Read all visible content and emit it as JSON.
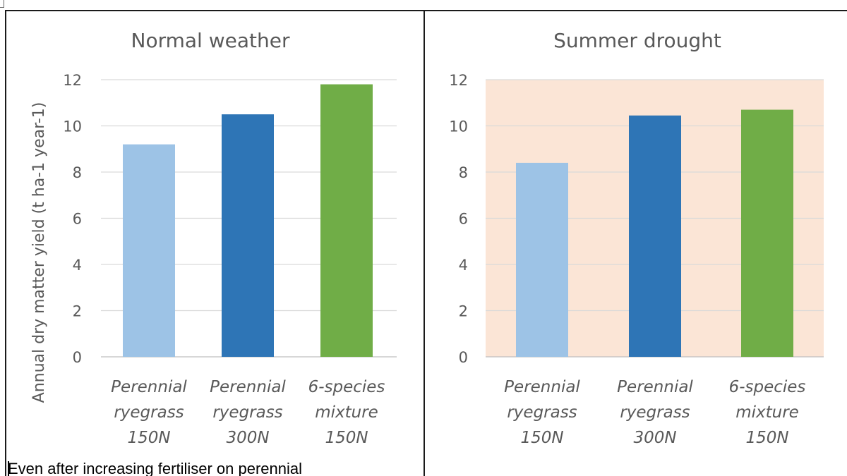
{
  "chart_data": [
    {
      "type": "bar",
      "title": "Normal weather",
      "ylabel": "Annual dry matter yield (t ha-1 year-1)",
      "xlabel": "",
      "categories": [
        [
          "Perennial",
          "ryegrass",
          "150N"
        ],
        [
          "Perennial",
          "ryegrass",
          "300N"
        ],
        [
          "6-species",
          "mixture",
          "150N"
        ]
      ],
      "values": [
        9.2,
        10.5,
        11.8
      ],
      "colors": [
        "#9dc3e6",
        "#2e75b6",
        "#70ad47"
      ],
      "ylim": [
        0,
        12
      ],
      "yticks": [
        "0",
        "2",
        "4",
        "6",
        "8",
        "10",
        "12"
      ],
      "grid": true,
      "plot_background": "#ffffff"
    },
    {
      "type": "bar",
      "title": "Summer drought",
      "ylabel": "",
      "xlabel": "",
      "categories": [
        [
          "Perennial",
          "ryegrass",
          "150N"
        ],
        [
          "Perennial",
          "ryegrass",
          "300N"
        ],
        [
          "6-species",
          "mixture",
          "150N"
        ]
      ],
      "values": [
        8.4,
        10.45,
        10.7
      ],
      "colors": [
        "#9dc3e6",
        "#2e75b6",
        "#70ad47"
      ],
      "ylim": [
        0,
        12
      ],
      "yticks": [
        "0",
        "2",
        "4",
        "6",
        "8",
        "10",
        "12"
      ],
      "grid": true,
      "plot_background": "#fbe5d6"
    }
  ],
  "document": {
    "caption_text": "Even after increasing fertiliser on perennial"
  }
}
